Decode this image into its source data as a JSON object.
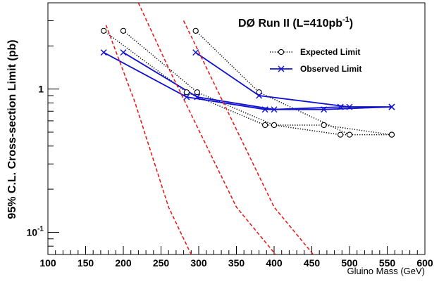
{
  "chart_data": {
    "type": "line",
    "title": "DØ Run II (L=410pb⁻¹)",
    "xlabel": "Gluino Mass (GeV)",
    "ylabel": "95% C.L. Cross-section Limit (pb)",
    "xlim": [
      100,
      600
    ],
    "ylim": [
      0.07,
      4
    ],
    "yscale": "log",
    "x_ticks": [
      100,
      150,
      200,
      250,
      300,
      350,
      400,
      450,
      500,
      550,
      600
    ],
    "y_ticks": [
      {
        "value": 0.1,
        "base": "10",
        "exp": "-1"
      },
      {
        "value": 1,
        "base": "1",
        "exp": ""
      }
    ],
    "grid": false,
    "legend_position": "top-right",
    "legend": [
      {
        "label": "Expected Limit",
        "style": "dotted-circle",
        "color": "#000000"
      },
      {
        "label": "Observed Limit",
        "style": "solid-cross",
        "color": "#1010d0"
      }
    ],
    "series": [
      {
        "group": "Expected Limit",
        "color": "#000000",
        "line": "dotted",
        "marker": "circle",
        "x": [
          174,
          284,
          388,
          466,
          556
        ],
        "y": [
          2.55,
          0.95,
          0.56,
          0.56,
          0.48
        ]
      },
      {
        "group": "Expected Limit",
        "color": "#000000",
        "line": "dotted",
        "marker": "circle",
        "x": [
          200,
          298,
          400,
          488,
          556
        ],
        "y": [
          2.55,
          0.95,
          0.56,
          0.48,
          0.48
        ]
      },
      {
        "group": "Expected Limit",
        "color": "#000000",
        "line": "dotted",
        "marker": "circle",
        "x": [
          296,
          380,
          500
        ],
        "y": [
          2.55,
          0.95,
          0.48
        ]
      },
      {
        "group": "Observed Limit",
        "color": "#1010d0",
        "line": "solid",
        "marker": "cross",
        "x": [
          174,
          284,
          388,
          466,
          556
        ],
        "y": [
          1.8,
          0.88,
          0.72,
          0.72,
          0.75
        ]
      },
      {
        "group": "Observed Limit",
        "color": "#1010d0",
        "line": "solid",
        "marker": "cross",
        "x": [
          200,
          298,
          400,
          488,
          556
        ],
        "y": [
          1.8,
          0.88,
          0.72,
          0.75,
          0.75
        ]
      },
      {
        "group": "Observed Limit",
        "color": "#1010d0",
        "line": "solid",
        "marker": "cross",
        "x": [
          296,
          380,
          500,
          556
        ],
        "y": [
          1.8,
          0.9,
          0.75,
          0.75
        ]
      },
      {
        "group": "theory",
        "color": "#ee1111",
        "line": "dashed",
        "marker": "none",
        "x": [
          177,
          215,
          260,
          290
        ],
        "y": [
          2.8,
          0.82,
          0.15,
          0.07
        ]
      },
      {
        "group": "theory",
        "color": "#ee1111",
        "line": "dashed",
        "marker": "none",
        "x": [
          220,
          260,
          350,
          402
        ],
        "y": [
          4,
          1.4,
          0.15,
          0.07
        ]
      },
      {
        "group": "theory",
        "color": "#ee1111",
        "line": "dashed",
        "marker": "none",
        "x": [
          280,
          400,
          452
        ],
        "y": [
          3,
          0.15,
          0.07
        ]
      }
    ]
  }
}
